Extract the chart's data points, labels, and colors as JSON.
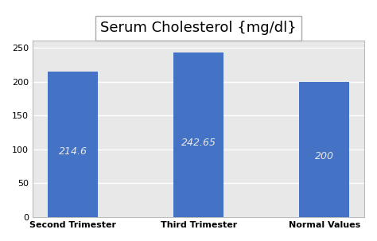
{
  "categories": [
    "Second Trimester",
    "Third Trimester",
    "Normal Values"
  ],
  "values": [
    214.6,
    242.65,
    200
  ],
  "bar_labels": [
    "214.6",
    "242.65",
    "200"
  ],
  "bar_color": "#4472C4",
  "title": "Serum Cholesterol {mg/dl}",
  "title_fontsize": 13,
  "label_fontsize": 9,
  "label_color": "#E8E8E8",
  "tick_label_fontsize": 8,
  "ylim": [
    0,
    260
  ],
  "yticks": [
    0,
    50,
    100,
    150,
    200,
    250
  ],
  "background_color": "#FFFFFF",
  "plot_bg_color": "#E8E8E8",
  "grid_color": "#FFFFFF",
  "title_box_facecolor": "#FFFFFF",
  "title_box_edgecolor": "#AAAAAA",
  "bar_width": 0.4
}
